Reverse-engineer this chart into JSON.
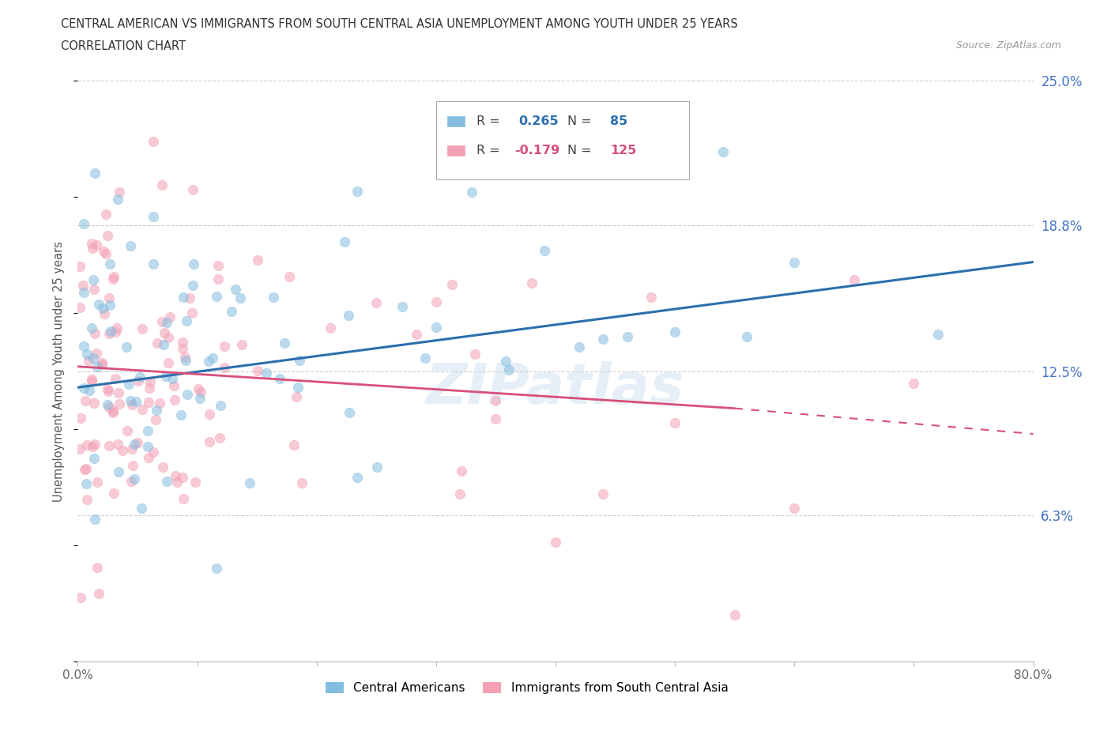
{
  "title_line1": "CENTRAL AMERICAN VS IMMIGRANTS FROM SOUTH CENTRAL ASIA UNEMPLOYMENT AMONG YOUTH UNDER 25 YEARS",
  "title_line2": "CORRELATION CHART",
  "source_text": "Source: ZipAtlas.com",
  "ylabel": "Unemployment Among Youth under 25 years",
  "xmin": 0.0,
  "xmax": 0.8,
  "ymin": 0.0,
  "ymax": 0.25,
  "yticks": [
    0.063,
    0.125,
    0.188,
    0.25
  ],
  "ytick_labels": [
    "6.3%",
    "12.5%",
    "18.8%",
    "25.0%"
  ],
  "xticks": [
    0.0,
    0.1,
    0.2,
    0.3,
    0.4,
    0.5,
    0.6,
    0.7,
    0.8
  ],
  "xtick_labels": [
    "0.0%",
    "",
    "",
    "",
    "",
    "",
    "",
    "",
    "80.0%"
  ],
  "grid_color": "#cccccc",
  "blue_color": "#85bde0",
  "pink_color": "#f4a0b5",
  "blue_line_color": "#2c6fad",
  "pink_line_color": "#d94f7a",
  "R_blue": 0.265,
  "N_blue": 85,
  "R_pink": -0.179,
  "N_pink": 125,
  "legend_label_blue": "Central Americans",
  "legend_label_pink": "Immigrants from South Central Asia",
  "watermark": "ZIPatlas",
  "blue_trend_x0": 0.0,
  "blue_trend_y0": 0.118,
  "blue_trend_x1": 0.8,
  "blue_trend_y1": 0.172,
  "pink_trend_x0": 0.0,
  "pink_trend_y0": 0.127,
  "pink_trend_x1": 0.8,
  "pink_trend_y1": 0.098,
  "pink_trend_solid_x1": 0.55,
  "pink_trend_solid_y1": 0.109
}
